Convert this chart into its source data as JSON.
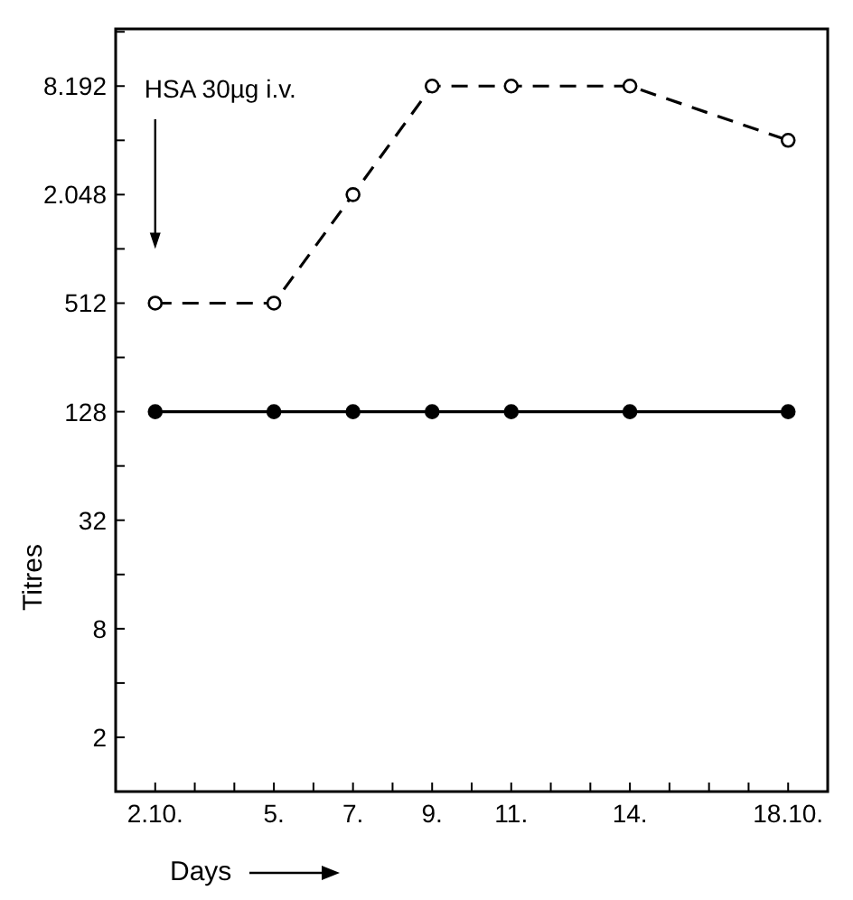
{
  "chart_data": {
    "type": "line",
    "xlabel": "Days",
    "ylabel": "Titres",
    "log": "y",
    "marker": "circle",
    "annotations": [
      "HSA 30µg i.v."
    ],
    "x": [
      "--10-02",
      "--10-05",
      "--10-07",
      "--10-09",
      "--10-11",
      "--10-14",
      "--10-18"
    ],
    "series": [
      {
        "color": "#000000",
        "line_style": "dashed",
        "values": [
          512,
          512,
          2048,
          8192,
          8192,
          8192,
          4096
        ]
      },
      {
        "color": "#000000",
        "line_style": "solid",
        "values": [
          128,
          128,
          128,
          128,
          128,
          128,
          128
        ]
      }
    ],
    "xlim": [
      "--10-01",
      "--10-19"
    ],
    "xticks": [
      {
        "value": "--10-01",
        "label": null
      },
      {
        "value": "--10-02",
        "label": "2.10."
      },
      {
        "value": "--10-03",
        "label": null
      },
      {
        "value": "--10-04",
        "label": null
      },
      {
        "value": "--10-05",
        "label": "5."
      },
      {
        "value": "--10-06",
        "label": null
      },
      {
        "value": "--10-07",
        "label": "7."
      },
      {
        "value": "--10-08",
        "label": null
      },
      {
        "value": "--10-09",
        "label": "9."
      },
      {
        "value": "--10-10",
        "label": null
      },
      {
        "value": "--10-11",
        "label": "11."
      },
      {
        "value": "--10-12",
        "label": null
      },
      {
        "value": "--10-13",
        "label": null
      },
      {
        "value": "--10-14",
        "label": "14."
      },
      {
        "value": "--10-15",
        "label": null
      },
      {
        "value": "--10-16",
        "label": null
      },
      {
        "value": "--10-17",
        "label": null
      },
      {
        "value": "--10-18",
        "label": "18.10."
      }
    ],
    "ylim": [
      1,
      17000
    ],
    "yticks": [
      2,
      {
        "value": 4,
        "label": null
      },
      8,
      {
        "value": 16,
        "label": null
      },
      32,
      {
        "value": 64,
        "label": null
      },
      128,
      {
        "value": 256,
        "label": null
      },
      512,
      {
        "value": 1024,
        "label": null
      },
      {
        "value": 2048,
        "label": "2.048"
      },
      {
        "value": 4096,
        "label": null
      },
      {
        "value": 8192,
        "label": "8.192"
      },
      {
        "value": 16384,
        "label": null
      }
    ]
  }
}
